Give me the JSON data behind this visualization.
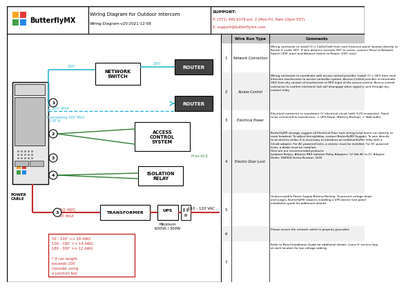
{
  "title": "Wiring Diagram for Outdoor Intercom",
  "subtitle": "Wiring-Diagram-v20-2021-12-08",
  "support_label": "SUPPORT:",
  "support_phone": "P: (571) 480.6379 ext. 2 (Mon-Fri, 6am-10pm EST)",
  "support_email": "E: support@butterflymx.com",
  "logo_text": "ButterflyMX",
  "bg_color": "#ffffff",
  "cyan_color": "#29b6d4",
  "green_color": "#2e7d32",
  "red_color": "#c62828",
  "dark_box_bg": "#424242",
  "network_switch_label": "NETWORK\nSWITCH",
  "router_label": "ROUTER",
  "access_control_label": "ACCESS\nCONTROL\nSYSTEM",
  "isolation_relay_label": "ISOLATION\nRELAY",
  "transformer_label": "TRANSFORMER",
  "ups_label": "UPS",
  "power_cable_label": "POWER\nCABLE",
  "if_no_acs_label": "If no ACS",
  "if_exceeding_label": "If exceeding 300' MAX",
  "cat6_label": "CAT 6",
  "awg_label": "18/2 AWG",
  "distance_250a": "250'",
  "distance_250b": "250'",
  "distance_300": "300' MAX",
  "distance_50": "50' MAX",
  "voltage_label": "110 - 120 VAC",
  "min_label": "Minimum\n600VA / 300W",
  "wire_note_label": "50 - 100' >> 18 AWG\n100 - 180' >> 14 AWG\n180 - 300' >> 12 AWG\n\n* If run length\nexceeds 200'\nconsider using\na junction box",
  "logo_colors": [
    "#f9a825",
    "#e53935",
    "#43a047",
    "#1e88e5"
  ],
  "table_header_cols": [
    "Wire Run Type",
    "Comments"
  ],
  "table_rows": [
    {
      "num": "1",
      "type": "Network Connection",
      "comment": "Wiring contractor to install (1) x Cat5e/Cat6 from each Intercom panel location directly to\nRouter if under 300'. If wire distance exceeds 300' to router, connect Panel to Network\nSwitch (300' max) and Network Switch to Router (250' max)."
    },
    {
      "num": "2",
      "type": "Access Control",
      "comment": "Wiring contractor to coordinate with access control provider, install (1) x 18/2 from each\nIntercom touchscreen to access controller system. Access Control provider to terminate\n18/2 from dry contact of touchscreen to REX Input of the access control. Access control\ncontractor to confirm electronic lock will disengage when signal is sent through dry\ncontact relay."
    },
    {
      "num": "3",
      "type": "Electrical Power",
      "comment": "Electrical contractor to coordinate (1) electrical circuit (with 3-20 receptacle). Panel\nto be connected to transformer -> UPS Power (Battery Backup) -> Wall outlet"
    },
    {
      "num": "4",
      "type": "Electric Door Lock",
      "comment": "ButterflyMX strongly suggest all Electrical Door Lock wiring to be home-run directly to\nmain headend. To adjust timing/delay, contact ButterflyMX Support. To wire directly\nto an electric strike, it is necessary to introduce an isolation/buffer relay with a\n12volt adapter. For AC-powered locks, a resistor must be installed. For DC-powered\nlocks, a diode must be installed.\nHere are our recommended products:\nIsolation Relays: Altronix RB5 Isolation Relay Adapters: 12 Volt AC to DC Adapter\nDiode: 1N4004 Series Resistor: 1k50"
    },
    {
      "num": "5",
      "type": "",
      "comment": "Uninterruptible Power Supply Battery Backup. To prevent voltage drops\nand surges, ButterflyMX requires installing a UPS device (see panel\ninstallation guide for additional details)."
    },
    {
      "num": "6",
      "type": "",
      "comment": "Please ensure the network switch is properly grounded."
    },
    {
      "num": "7",
      "type": "",
      "comment": "Refer to Panel Installation Guide for additional details. Leave 6' service loop\nat each location for low voltage cabling."
    }
  ]
}
